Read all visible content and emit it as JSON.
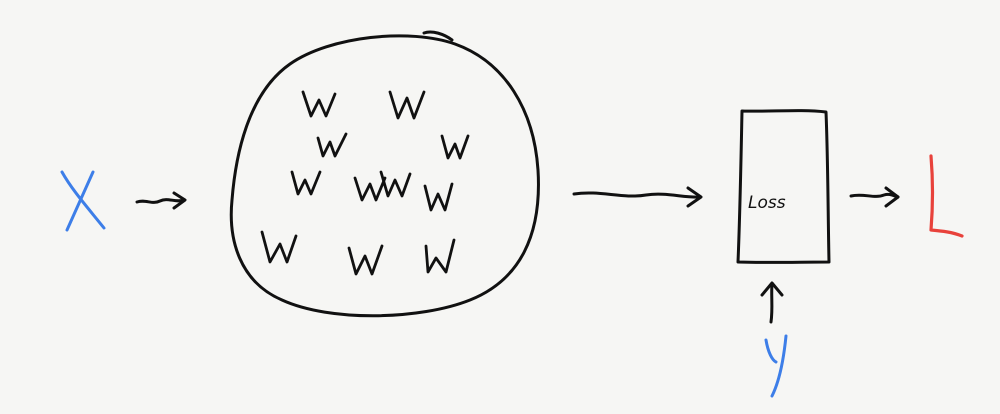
{
  "diagram": {
    "input_label": "X",
    "network_weight_glyph": "W",
    "network_weight_count": 11,
    "loss_box_label": "Loss",
    "target_label": "y",
    "output_label": "L",
    "colors": {
      "ink": "#111111",
      "input": "#3d7ee8",
      "target": "#3d7ee8",
      "output": "#e8423b",
      "background": "#f6f6f4"
    }
  }
}
